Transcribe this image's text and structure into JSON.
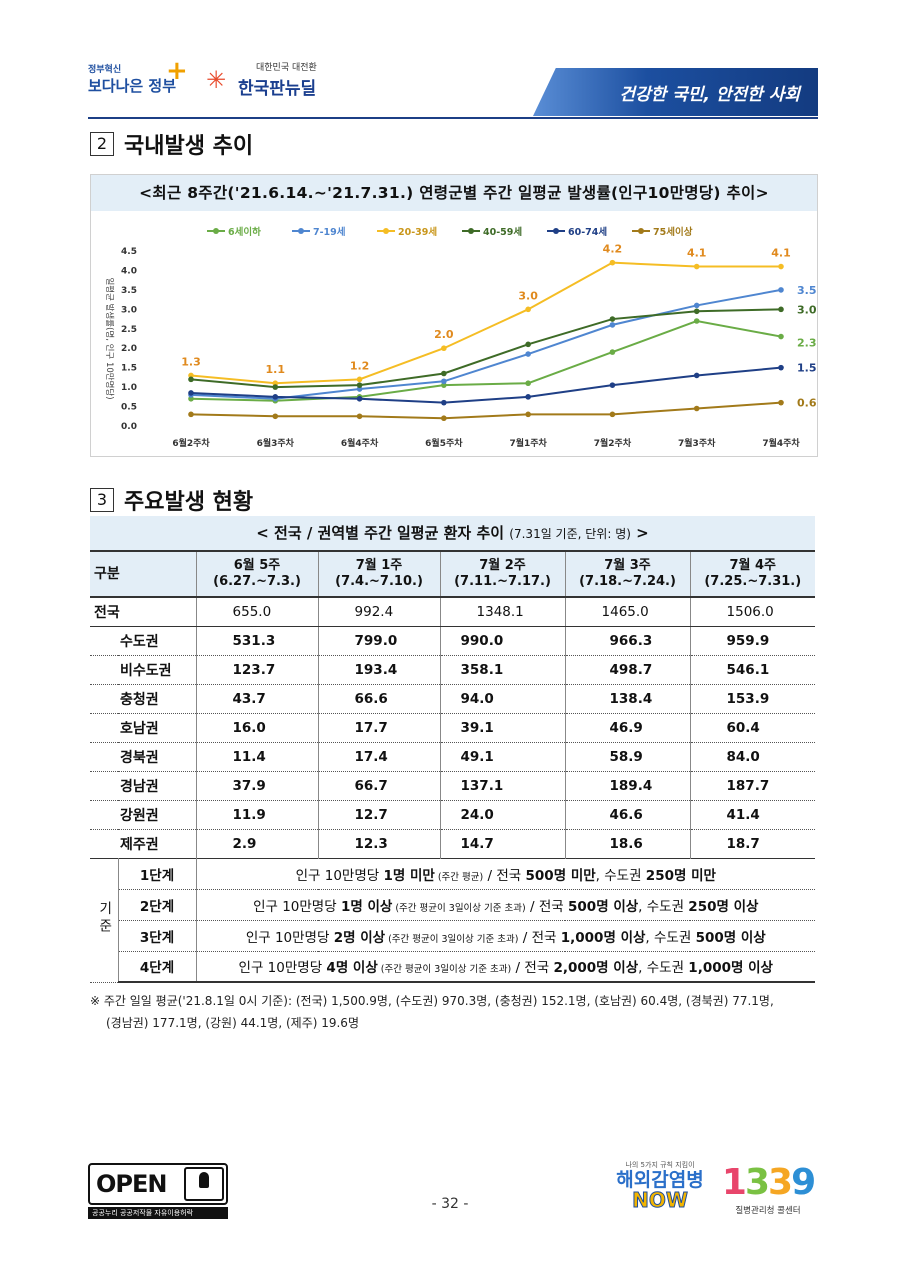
{
  "header": {
    "logo1_small": "정부혁신",
    "logo1_big": "보다나은 정부",
    "logo2_sub": "대한민국 대전환",
    "logo2_name": "한국판뉴딜",
    "slogan": "건강한 국민, 안전한 사회"
  },
  "section1": {
    "num": "2",
    "title": "국내발생 추이"
  },
  "chart_title": "<최근 8주간('21.6.14.~'21.7.31.) 연령군별 주간 일평균 발생률(인구10만명당) 추이>",
  "chart_data": {
    "type": "line",
    "title": "<최근 8주간('21.6.14.~'21.7.31.) 연령군별 주간 일평균 발생률(인구10만명당) 추이>",
    "ylabel": "일평균 발생률(명, 인구 10만명당)",
    "xlabel": "",
    "ylim": [
      0,
      4.5
    ],
    "yticks": [
      "0.0",
      "0.5",
      "1.0",
      "1.5",
      "2.0",
      "2.5",
      "3.0",
      "3.5",
      "4.0",
      "4.5"
    ],
    "categories": [
      "6월2주차",
      "6월3주차",
      "6월4주차",
      "6월5주차",
      "7월1주차",
      "7월2주차",
      "7월3주차",
      "7월4주차"
    ],
    "series": [
      {
        "name": "6세이하",
        "color": "#6aac46",
        "values": [
          0.7,
          0.65,
          0.75,
          1.05,
          1.1,
          1.9,
          2.7,
          2.3
        ],
        "end_label": "2.3"
      },
      {
        "name": "7-19세",
        "color": "#4f86d0",
        "values": [
          0.8,
          0.7,
          0.95,
          1.15,
          1.85,
          2.6,
          3.1,
          3.5
        ],
        "end_label": "3.5"
      },
      {
        "name": "20-39세",
        "color": "#f5bd24",
        "values": [
          1.3,
          1.1,
          1.2,
          2.0,
          3.0,
          4.2,
          4.1,
          4.1
        ],
        "labels": [
          "1.3",
          "1.1",
          "1.2",
          "2.0",
          "3.0",
          "4.2",
          "4.1",
          "4.1"
        ]
      },
      {
        "name": "40-59세",
        "color": "#3e6b27",
        "values": [
          1.2,
          1.0,
          1.05,
          1.35,
          2.1,
          2.75,
          2.95,
          3.0
        ],
        "end_label": "3.0"
      },
      {
        "name": "60-74세",
        "color": "#1f3f86",
        "values": [
          0.85,
          0.75,
          0.7,
          0.6,
          0.75,
          1.05,
          1.3,
          1.5
        ],
        "end_label": "1.5"
      },
      {
        "name": "75세이상",
        "color": "#a27a1a",
        "values": [
          0.3,
          0.25,
          0.25,
          0.2,
          0.3,
          0.3,
          0.45,
          0.6
        ],
        "end_label": "0.6"
      }
    ]
  },
  "section2": {
    "num": "3",
    "title": "주요발생 현황"
  },
  "table": {
    "title": "< 전국 / 권역별 주간 일평균 환자 추이",
    "title_note": "(7.31일 기준, 단위: 명)",
    "title_end": ">",
    "header_label": "구분",
    "columns": [
      {
        "week": "6월 5주",
        "range": "(6.27.~7.3.)"
      },
      {
        "week": "7월 1주",
        "range": "(7.4.~7.10.)"
      },
      {
        "week": "7월 2주",
        "range": "(7.11.~7.17.)"
      },
      {
        "week": "7월 3주",
        "range": "(7.18.~7.24.)"
      },
      {
        "week": "7월 4주",
        "range": "(7.25.~7.31.)"
      }
    ],
    "rows": [
      {
        "label": "전국",
        "values": [
          "655.0",
          "992.4",
          "1348.1",
          "1465.0",
          "1506.0"
        ]
      },
      {
        "label": "수도권",
        "values": [
          "531.3",
          "799.0",
          "990.0",
          "966.3",
          "959.9"
        ]
      },
      {
        "label": "비수도권",
        "values": [
          "123.7",
          "193.4",
          "358.1",
          "498.7",
          "546.1"
        ]
      },
      {
        "label": "충청권",
        "values": [
          "43.7",
          "66.6",
          "94.0",
          "138.4",
          "153.9"
        ]
      },
      {
        "label": "호남권",
        "values": [
          "16.0",
          "17.7",
          "39.1",
          "46.9",
          "60.4"
        ]
      },
      {
        "label": "경북권",
        "values": [
          "11.4",
          "17.4",
          "49.1",
          "58.9",
          "84.0"
        ]
      },
      {
        "label": "경남권",
        "values": [
          "37.9",
          "66.7",
          "137.1",
          "189.4",
          "187.7"
        ]
      },
      {
        "label": "강원권",
        "values": [
          "11.9",
          "12.7",
          "24.0",
          "46.6",
          "41.4"
        ]
      },
      {
        "label": "제주권",
        "values": [
          "2.9",
          "12.3",
          "14.7",
          "18.6",
          "18.7"
        ]
      }
    ],
    "criteria_label": "기준",
    "levels": [
      {
        "name": "1단계",
        "a": "인구 10만명당 ",
        "b": "1명 미만",
        "c": " (주간 평균)",
        "d": " / 전국 ",
        "e": "500명 미만",
        "f": ", 수도권 ",
        "g": "250명 미만"
      },
      {
        "name": "2단계",
        "a": "인구 10만명당 ",
        "b": "1명 이상",
        "c": " (주간 평균이 3일이상 기준 초과)",
        "d": " / 전국 ",
        "e": "500명 이상",
        "f": ", 수도권 ",
        "g": "250명 이상"
      },
      {
        "name": "3단계",
        "a": "인구 10만명당 ",
        "b": "2명 이상",
        "c": " (주간 평균이 3일이상 기준 초과)",
        "d": " / 전국 ",
        "e": "1,000명 이상",
        "f": ", 수도권 ",
        "g": "500명 이상"
      },
      {
        "name": "4단계",
        "a": "인구 10만명당 ",
        "b": "4명 이상",
        "c": " (주간 평균이 3일이상 기준 초과)",
        "d": " / 전국 ",
        "e": "2,000명 이상",
        "f": ", 수도권 ",
        "g": "1,000명 이상"
      }
    ]
  },
  "footnote_line1": "※ 주간 일일 평균('21.8.1일 0시 기준): (전국) 1,500.9명, (수도권) 970.3명, (충청권) 152.1명, (호남권) 60.4명, (경북권) 77.1명,",
  "footnote_line2": "(경남권) 177.1명, (강원) 44.1명, (제주) 19.6명",
  "footer": {
    "open_text": "OPEN",
    "open_sub": "공공누리 공공저작물 자유이용허락",
    "page": "- 32 -",
    "now_top": "나의 5가지 규칙 지킴이",
    "now_main": "해외감염병",
    "now_sub": "NOW",
    "n1339": [
      "1",
      "3",
      "3",
      "9"
    ],
    "n1339_sub": "질병관리청 콜센터"
  }
}
